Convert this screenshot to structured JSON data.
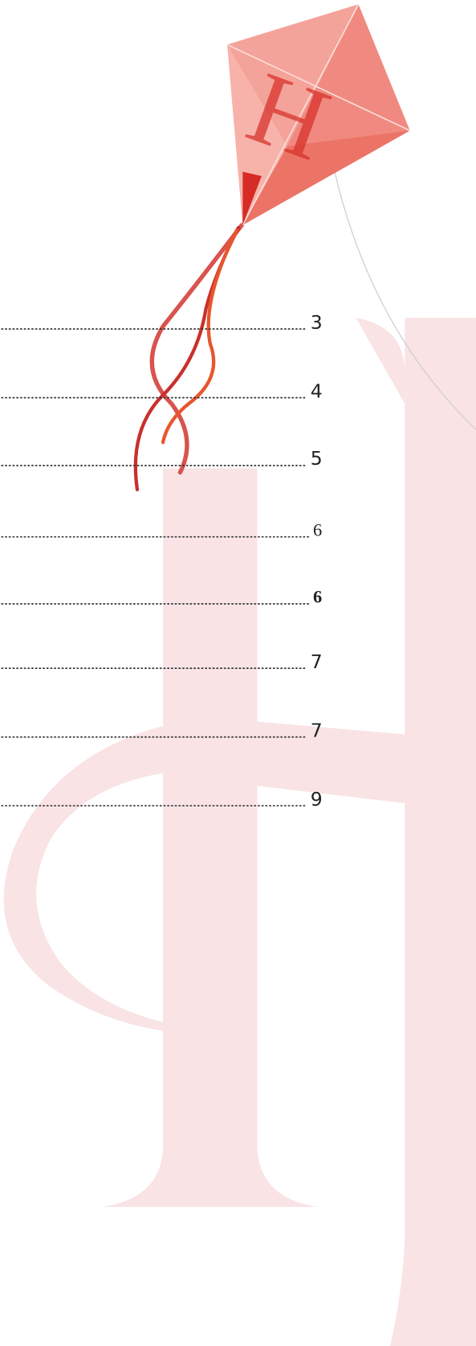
{
  "toc": {
    "entries": [
      {
        "page": 3
      },
      {
        "page": 4
      },
      {
        "page": 5
      },
      {
        "page": 6
      },
      {
        "page": 6
      },
      {
        "page": 7
      },
      {
        "page": 7
      },
      {
        "page": 9
      }
    ]
  }
}
